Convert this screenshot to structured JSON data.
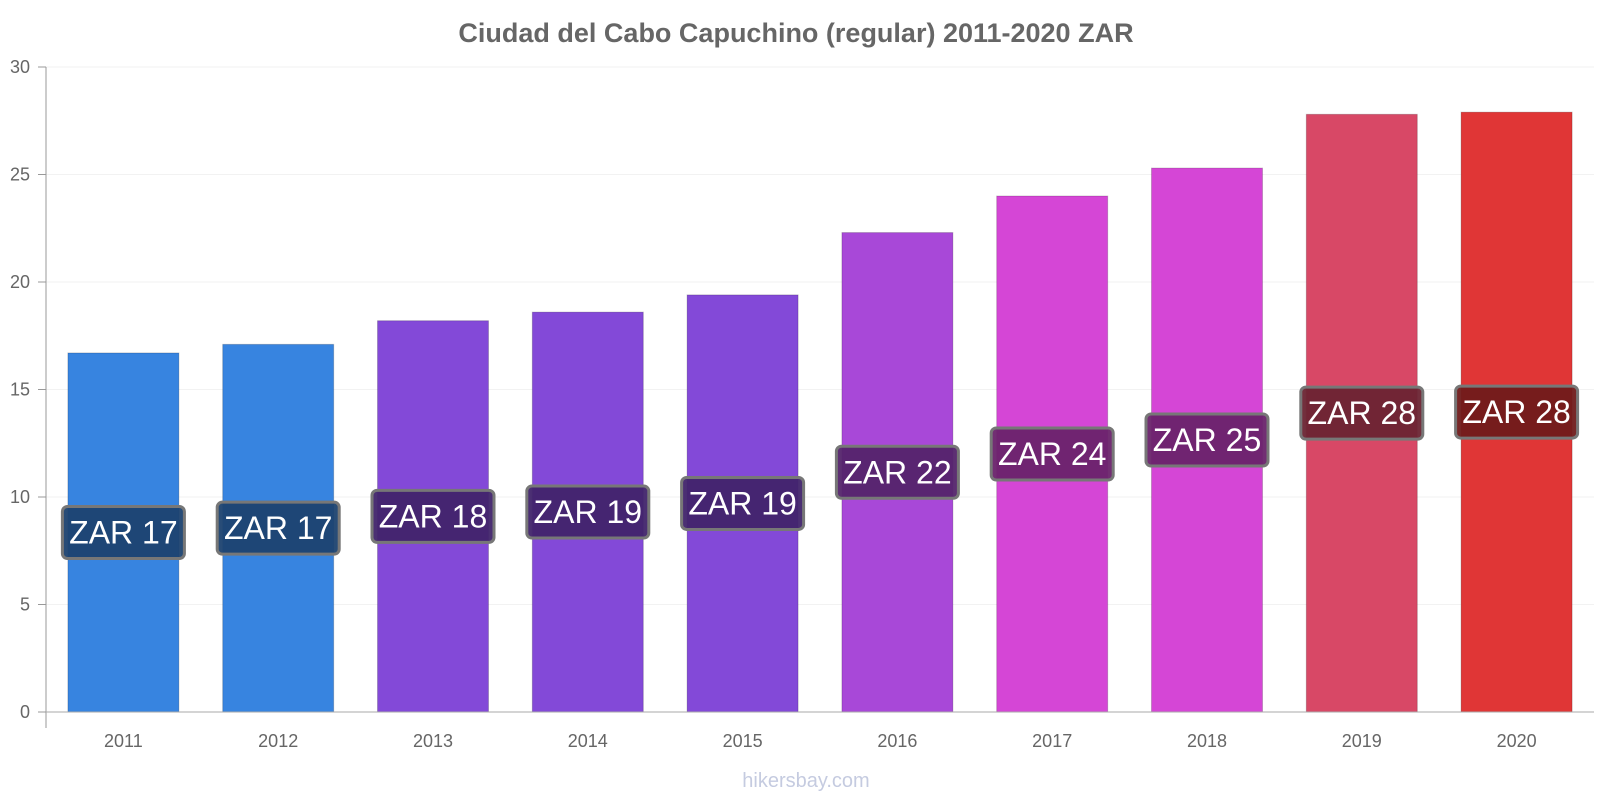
{
  "watermark": "hikersbay.com",
  "chart_data": {
    "type": "bar",
    "title": "Ciudad del Cabo Capuchino (regular) 2011-2020 ZAR",
    "xlabel": "",
    "ylabel": "",
    "ylim": [
      0,
      30
    ],
    "yticks": [
      "0",
      "5",
      "10",
      "15",
      "20",
      "25",
      "30"
    ],
    "grid": true,
    "legend": "none",
    "categories": [
      "2011",
      "2012",
      "2013",
      "2014",
      "2015",
      "2016",
      "2017",
      "2018",
      "2019",
      "2020"
    ],
    "values": [
      16.7,
      17.1,
      18.2,
      18.6,
      19.4,
      22.3,
      24.0,
      25.3,
      27.8,
      27.9
    ],
    "data_labels": [
      "ZAR 17",
      "ZAR 17",
      "ZAR 18",
      "ZAR 19",
      "ZAR 19",
      "ZAR 22",
      "ZAR 24",
      "ZAR 25",
      "ZAR 28",
      "ZAR 28"
    ],
    "bar_colors": [
      "#3784e0",
      "#3784e0",
      "#8349d8",
      "#8349d8",
      "#8349d8",
      "#a848d8",
      "#d546d6",
      "#d546d6",
      "#d84866",
      "#e03636"
    ],
    "label_bg_colors": [
      "#1c4270",
      "#1c4270",
      "#41246c",
      "#41246c",
      "#41246c",
      "#54246c",
      "#6a236b",
      "#6a236b",
      "#6c2433",
      "#701b1b"
    ]
  }
}
